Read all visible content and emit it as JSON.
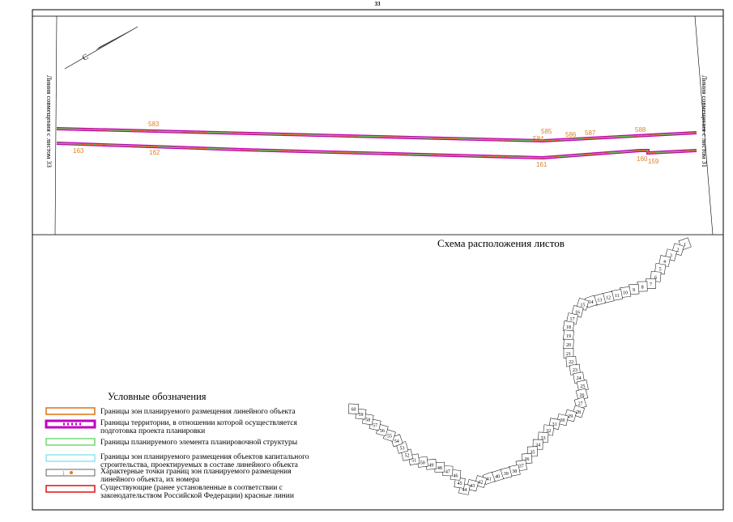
{
  "header": {
    "page": "33"
  },
  "map": {
    "left_label": "Линия совмещения с листом 33",
    "right_label": "Линия совмещения с листом 31",
    "north": "С",
    "points": [
      {
        "label": "583"
      },
      {
        "label": "163"
      },
      {
        "label": "162"
      },
      {
        "label": "585"
      },
      {
        "label": "584"
      },
      {
        "label": "586"
      },
      {
        "label": "587"
      },
      {
        "label": "588"
      },
      {
        "label": "161"
      },
      {
        "label": "160"
      },
      {
        "label": "159"
      }
    ]
  },
  "scheme": {
    "title": "Схема расположения листов",
    "sheets": [
      "1",
      "2",
      "3",
      "4",
      "5",
      "6",
      "7",
      "8",
      "9",
      "10",
      "11",
      "12",
      "13",
      "14",
      "15",
      "16",
      "17",
      "18",
      "19",
      "20",
      "21",
      "22",
      "23",
      "24",
      "25",
      "26",
      "27",
      "28",
      "29",
      "30",
      "31",
      "32",
      "33",
      "34",
      "35",
      "36",
      "37",
      "38",
      "39",
      "40",
      "41",
      "42",
      "43",
      "44",
      "45",
      "46",
      "47",
      "48",
      "49",
      "50",
      "51",
      "52",
      "53",
      "54",
      "55",
      "56",
      "57",
      "58",
      "59",
      "60"
    ]
  },
  "legend": {
    "title": "Условные обозначения",
    "items": [
      {
        "text": "Границы зон планируемого размещения линейного объекта"
      },
      {
        "text": "Границы территории, в отношении которой осуществляется подготовка проекта планировки"
      },
      {
        "text": "Границы планируемого элемента планировочной структуры"
      },
      {
        "text": "Границы зон планируемого размещения объектов капитального строительства, проектируемых в составе линейного объекта"
      },
      {
        "text": "Характерные точки границ зон планируемого размещения линейного объекта, их номера",
        "sample": "1"
      },
      {
        "text": "Существующие (ранее установленные в соответствии с законодательством Российской Федерации) красные линии"
      }
    ]
  }
}
